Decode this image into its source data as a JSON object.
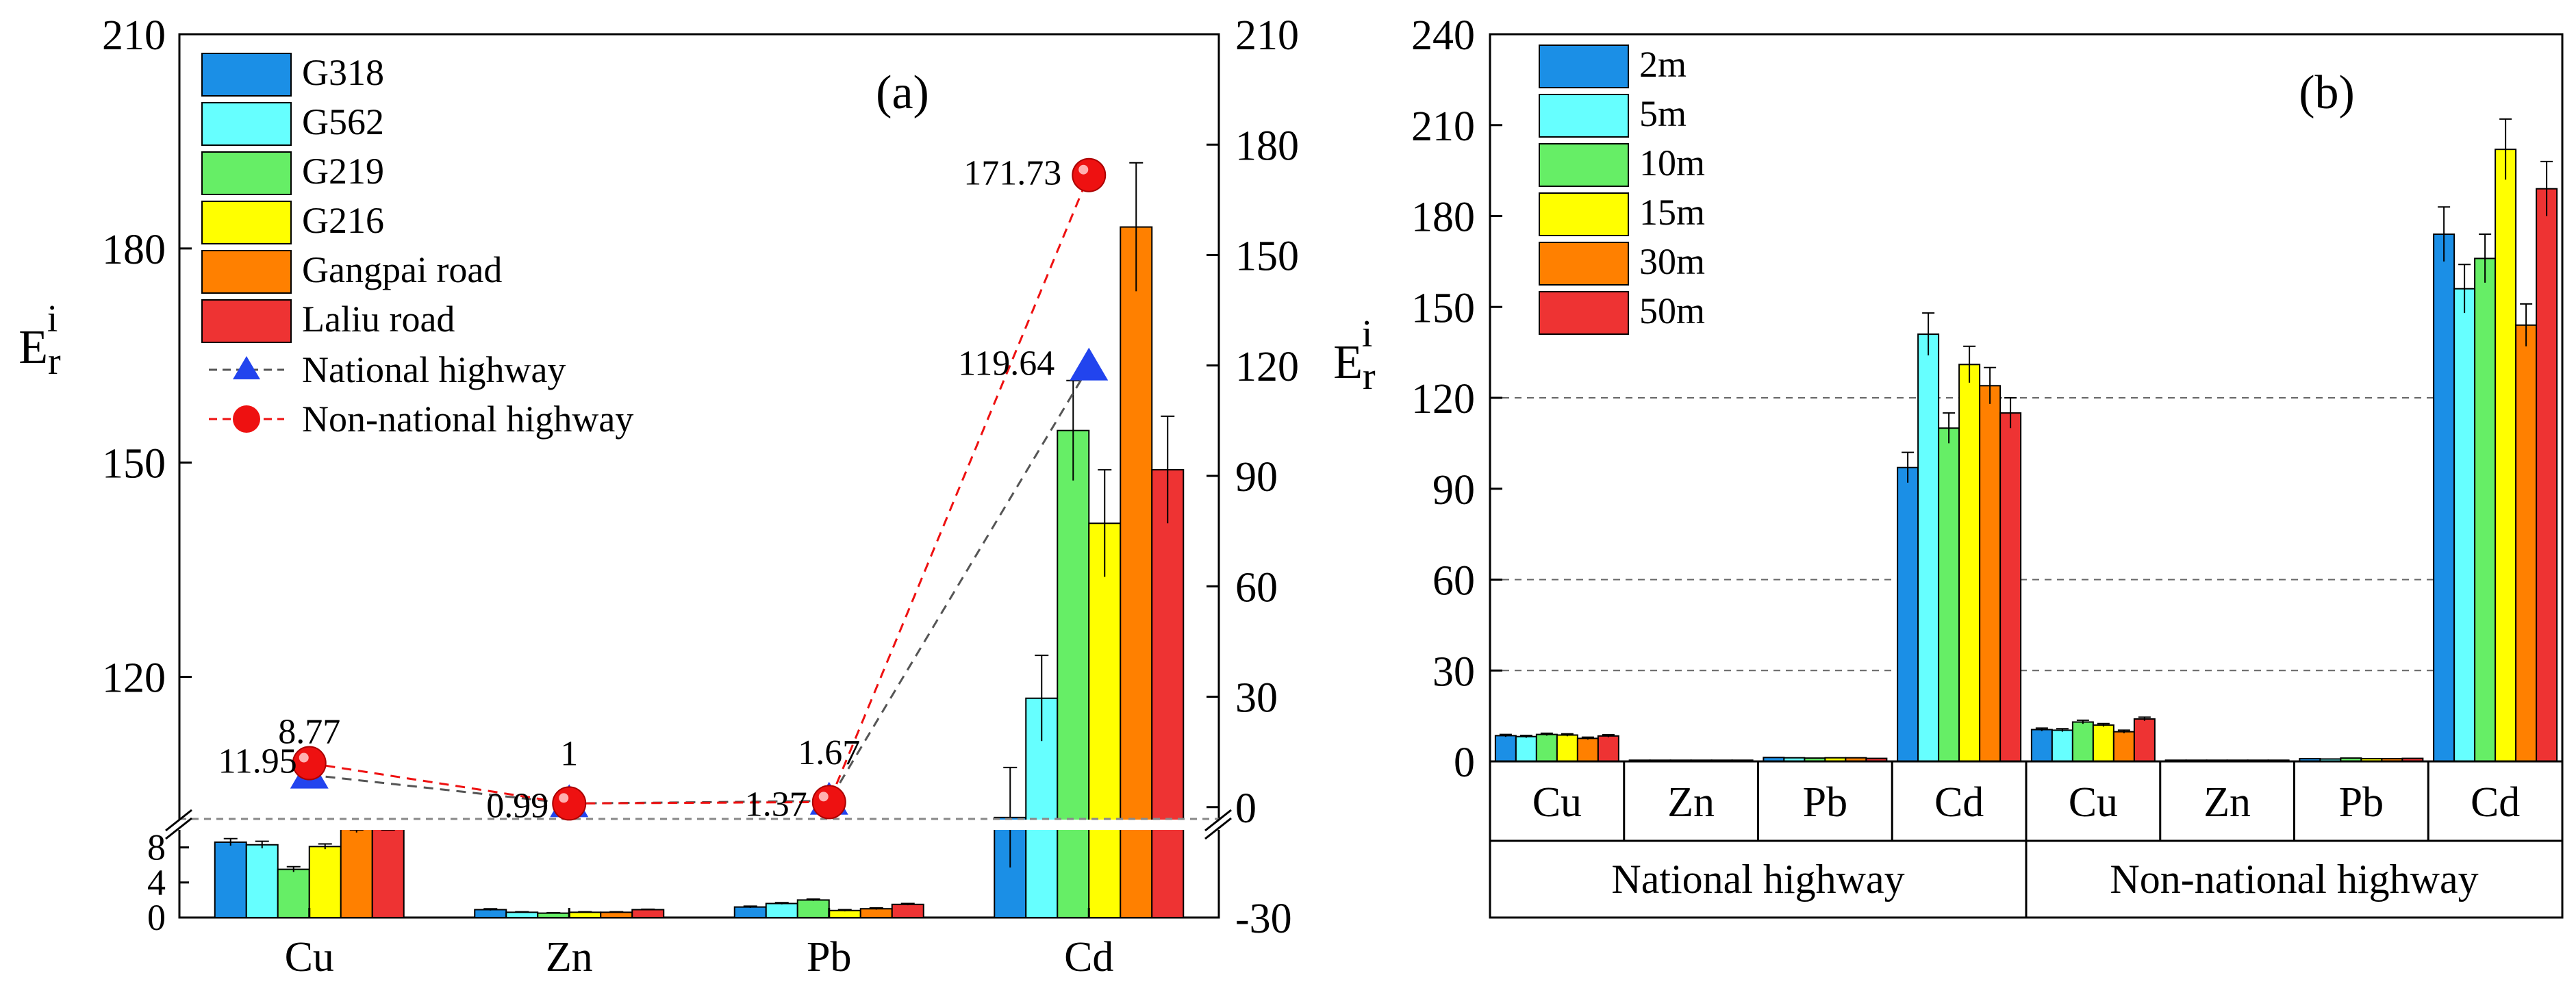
{
  "chart_data": [
    {
      "panel_label": "(a)",
      "type": "bar",
      "categories": [
        "Cu",
        "Zn",
        "Pb",
        "Cd"
      ],
      "ylabel_main": "E",
      "ylabel_sub": "r",
      "ylabel_sup": "i",
      "axis_break": true,
      "ylim_lower": [
        0,
        10
      ],
      "ylim_upper": [
        100,
        210
      ],
      "left_ticks_lower": [
        "0",
        "4",
        "8"
      ],
      "left_ticks_upper": [
        "120",
        "150",
        "180",
        "210"
      ],
      "right_ylim": [
        -30,
        210
      ],
      "right_ticks": [
        "-30",
        "0",
        "30",
        "60",
        "90",
        "120",
        "150",
        "180",
        "210"
      ],
      "legend_position": "top-left",
      "series": [
        {
          "name": "G318",
          "color": "#1b8fe6",
          "values": [
            8.6,
            0.9,
            1.2,
            100.3
          ],
          "errors": [
            0.4,
            0.1,
            0.1,
            7
          ]
        },
        {
          "name": "G562",
          "color": "#66ffff",
          "values": [
            8.3,
            0.6,
            1.6,
            117
          ],
          "errors": [
            0.4,
            0.05,
            0.1,
            6
          ]
        },
        {
          "name": "G219",
          "color": "#66ee66",
          "values": [
            5.5,
            0.5,
            2.0,
            154.5
          ],
          "errors": [
            0.3,
            0.05,
            0.1,
            7
          ]
        },
        {
          "name": "G216",
          "color": "#ffff00",
          "values": [
            8.1,
            0.6,
            0.8,
            141.5
          ],
          "errors": [
            0.3,
            0.05,
            0.1,
            7.5
          ]
        },
        {
          "name": "Gangpai road",
          "color": "#ff8000",
          "values": [
            10.1,
            0.6,
            1.0,
            183
          ],
          "errors": [
            0.4,
            0.05,
            0.1,
            9
          ]
        },
        {
          "name": "Laliu road",
          "color": "#ee3333",
          "values": [
            10.6,
            0.9,
            1.5,
            149
          ],
          "errors": [
            0.5,
            0.05,
            0.1,
            7.5
          ]
        }
      ],
      "lines": [
        {
          "name": "National highway",
          "marker": "triangle",
          "color": "#2244ee",
          "values": [
            8.77,
            1,
            1.67,
            119.64
          ],
          "labels": [
            "8.77",
            "1",
            "1.67",
            "119.64"
          ]
        },
        {
          "name": "Non-national highway",
          "marker": "circle",
          "color": "#ee1111",
          "values": [
            11.95,
            0.99,
            1.37,
            171.73
          ],
          "labels": [
            "11.95",
            "0.99",
            "1.37",
            "171.73"
          ]
        }
      ]
    },
    {
      "panel_label": "(b)",
      "type": "bar",
      "ylabel_main": "E",
      "ylabel_sub": "r",
      "ylabel_sup": "i",
      "ylim": [
        0,
        240
      ],
      "y_ticks": [
        "0",
        "30",
        "60",
        "90",
        "120",
        "150",
        "180",
        "210",
        "240"
      ],
      "legend_position": "top-left",
      "groups": [
        {
          "name": "National highway",
          "categories": [
            "Cu",
            "Zn",
            "Pb",
            "Cd"
          ]
        },
        {
          "name": "Non-national highway",
          "categories": [
            "Cu",
            "Zn",
            "Pb",
            "Cd"
          ]
        }
      ],
      "series": [
        {
          "name": "2m",
          "color": "#1b8fe6",
          "values": [
            8.5,
            0.4,
            1.3,
            97,
            10.5,
            0.4,
            0.9,
            174
          ],
          "errors": [
            0.4,
            0.05,
            0.1,
            5,
            0.5,
            0.05,
            0.1,
            9
          ]
        },
        {
          "name": "5m",
          "color": "#66ffff",
          "values": [
            8.2,
            0.4,
            1.2,
            141,
            10.3,
            0.4,
            0.8,
            156
          ],
          "errors": [
            0.4,
            0.05,
            0.1,
            7,
            0.5,
            0.05,
            0.1,
            8
          ]
        },
        {
          "name": "10m",
          "color": "#66ee66",
          "values": [
            8.9,
            0.4,
            1.1,
            110,
            13.0,
            0.4,
            1.1,
            166
          ],
          "errors": [
            0.4,
            0.05,
            0.1,
            5,
            0.6,
            0.05,
            0.1,
            8
          ]
        },
        {
          "name": "15m",
          "color": "#ffff00",
          "values": [
            8.7,
            0.4,
            1.2,
            131,
            12.0,
            0.4,
            0.9,
            202
          ],
          "errors": [
            0.4,
            0.05,
            0.1,
            6,
            0.5,
            0.05,
            0.1,
            10
          ]
        },
        {
          "name": "30m",
          "color": "#ff8000",
          "values": [
            7.6,
            0.4,
            1.2,
            124,
            9.8,
            0.4,
            0.9,
            144
          ],
          "errors": [
            0.4,
            0.05,
            0.1,
            6,
            0.5,
            0.05,
            0.1,
            7
          ]
        },
        {
          "name": "50m",
          "color": "#ee3333",
          "values": [
            8.4,
            0.4,
            1.0,
            115,
            14.0,
            0.4,
            1.0,
            189
          ],
          "errors": [
            0.4,
            0.05,
            0.1,
            5,
            0.6,
            0.05,
            0.1,
            9
          ]
        }
      ],
      "gridlines": [
        30,
        60,
        120
      ]
    }
  ]
}
